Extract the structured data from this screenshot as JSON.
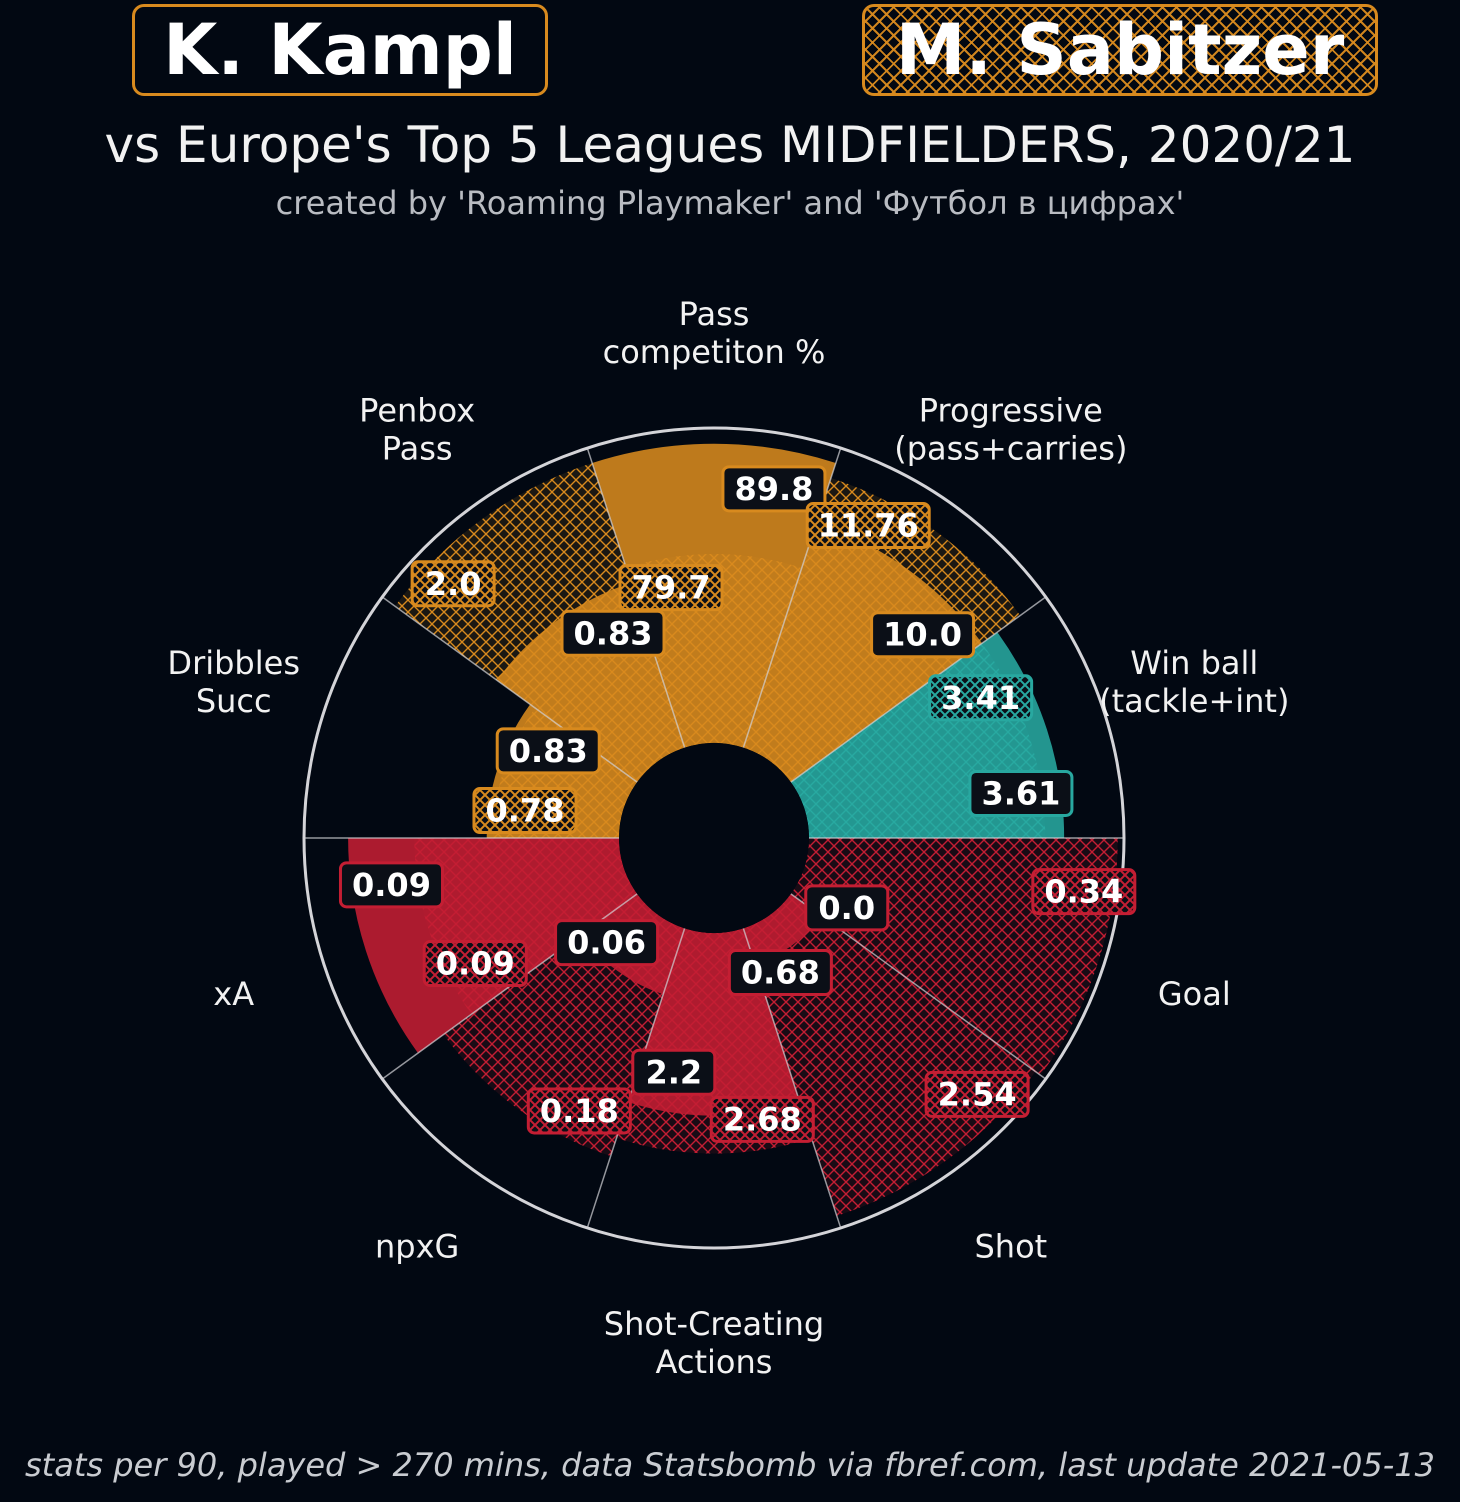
{
  "header": {
    "player1": "K. Kampl",
    "player2": "M. Sabitzer",
    "subtitle": "vs Europe's Top 5 Leagues MIDFIELDERS, 2020/21",
    "credit": "created by 'Roaming Playmaker' and 'Футбол в цифрах'"
  },
  "footer": "stats per 90, played > 270 mins, data Statsbomb via fbref.com, last update 2021-05-13",
  "colors": {
    "background": "#020812",
    "passing": "#d88a1e",
    "defending": "#28a8a0",
    "attacking": "#c41e33",
    "grid": "#d4d4d8"
  },
  "chart_data": {
    "type": "radial-bar",
    "r_max": 100,
    "series": [
      {
        "name": "K. Kampl",
        "style": "solid"
      },
      {
        "name": "M. Sabitzer",
        "style": "hatched"
      }
    ],
    "categories": [
      {
        "label": [
          "Pass",
          "competiton %"
        ],
        "group": "passing",
        "p1": {
          "value": "89.8",
          "percentile": 95
        },
        "p2": {
          "value": "79.7",
          "percentile": 60
        }
      },
      {
        "label": [
          "Progressive",
          "(pass+carries)"
        ],
        "group": "passing",
        "p1": {
          "value": "10.0",
          "percentile": 75
        },
        "p2": {
          "value": "11.76",
          "percentile": 90
        }
      },
      {
        "label": [
          "Win ball",
          "(tackle+int)"
        ],
        "group": "defending",
        "p1": {
          "value": "3.61",
          "percentile": 81
        },
        "p2": {
          "value": "3.41",
          "percentile": 75
        }
      },
      {
        "label": [
          "Goal"
        ],
        "group": "attacking",
        "p1": {
          "value": "0.0",
          "percentile": 0
        },
        "p2": {
          "value": "0.34",
          "percentile": 98
        }
      },
      {
        "label": [
          "Shot"
        ],
        "group": "attacking",
        "p1": {
          "value": "0.68",
          "percentile": 12
        },
        "p2": {
          "value": "2.54",
          "percentile": 96
        }
      },
      {
        "label": [
          "Shot-Creating",
          "Actions"
        ],
        "group": "attacking",
        "p1": {
          "value": "2.2",
          "percentile": 58
        },
        "p2": {
          "value": "2.68",
          "percentile": 70
        }
      },
      {
        "label": [
          "npxG"
        ],
        "group": "attacking",
        "p1": {
          "value": "0.06",
          "percentile": 22
        },
        "p2": {
          "value": "0.18",
          "percentile": 76
        }
      },
      {
        "label": [
          "xA"
        ],
        "group": "attacking",
        "p1": {
          "value": "0.09",
          "percentile": 86
        },
        "p2": {
          "value": "0.09",
          "percentile": 65
        }
      },
      {
        "label": [
          "Dribbles",
          "Succ"
        ],
        "group": "passing",
        "p1": {
          "value": "0.83",
          "percentile": 42
        },
        "p2": {
          "value": "0.78",
          "percentile": 40
        }
      },
      {
        "label": [
          "Penbox",
          "Pass"
        ],
        "group": "passing",
        "p1": {
          "value": "0.83",
          "percentile": 55
        },
        "p2": {
          "value": "2.0",
          "percentile": 95
        }
      }
    ]
  }
}
